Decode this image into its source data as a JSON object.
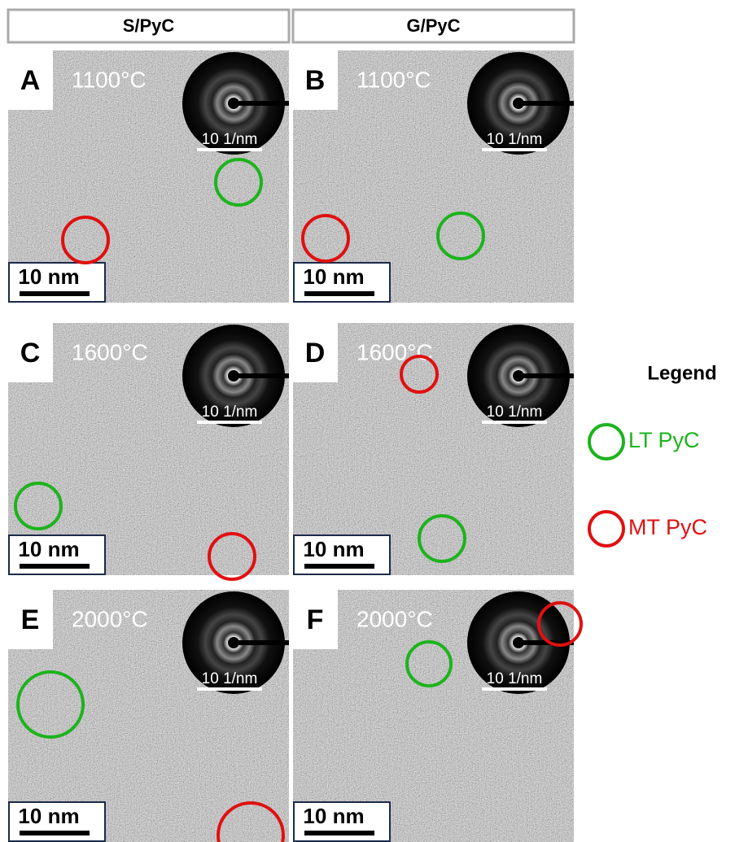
{
  "columns": [
    "S/PyC",
    "G/PyC"
  ],
  "panels": [
    {
      "letter": "A",
      "temperature": "1100°C",
      "diffraction_scale": "10 1/nm",
      "scale_bar": "10 nm"
    },
    {
      "letter": "B",
      "temperature": "1100°C",
      "diffraction_scale": "10 1/nm",
      "scale_bar": "10 nm"
    },
    {
      "letter": "C",
      "temperature": "1600°C",
      "diffraction_scale": "10 1/nm",
      "scale_bar": "10 nm"
    },
    {
      "letter": "D",
      "temperature": "1600°C",
      "diffraction_scale": "10 1/nm",
      "scale_bar": "10 nm"
    },
    {
      "letter": "E",
      "temperature": "2000°C",
      "diffraction_scale": "10 1/nm",
      "scale_bar": "10 nm"
    },
    {
      "letter": "F",
      "temperature": "2000°C",
      "diffraction_scale": "10 1/nm",
      "scale_bar": "10 nm"
    }
  ],
  "legend": {
    "title": "Legend",
    "items": [
      {
        "label": "LT PyC",
        "color": "#1db31d"
      },
      {
        "label": "MT PyC",
        "color": "#e01010"
      }
    ]
  }
}
